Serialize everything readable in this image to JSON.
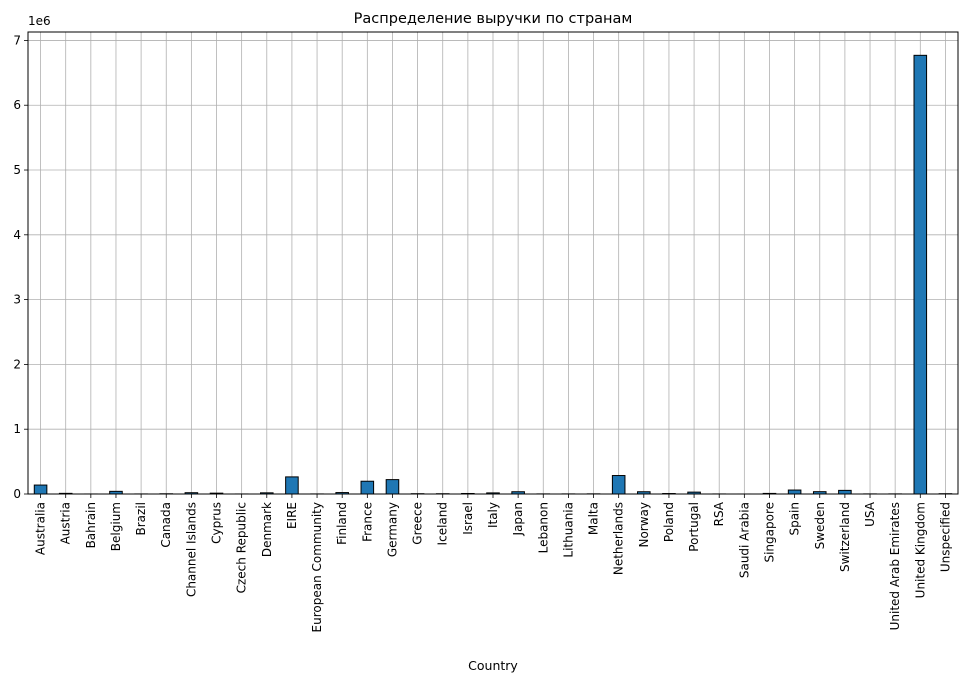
{
  "chart_data": {
    "type": "bar",
    "title": "Распределение выручки по странам",
    "xlabel": "Country",
    "ylabel": "",
    "y_offset_label": "1e6",
    "y_multiplier": 1000000,
    "ylim": [
      0,
      7130000
    ],
    "yticks": [
      0,
      1,
      2,
      3,
      4,
      5,
      6,
      7
    ],
    "grid": true,
    "bar_color": "#1f77b4",
    "edge_color": "#000000",
    "categories": [
      "Australia",
      "Austria",
      "Bahrain",
      "Belgium",
      "Brazil",
      "Canada",
      "Channel Islands",
      "Cyprus",
      "Czech Republic",
      "Denmark",
      "EIRE",
      "European Community",
      "Finland",
      "France",
      "Germany",
      "Greece",
      "Iceland",
      "Israel",
      "Italy",
      "Japan",
      "Lebanon",
      "Lithuania",
      "Malta",
      "Netherlands",
      "Norway",
      "Poland",
      "Portugal",
      "RSA",
      "Saudi Arabia",
      "Singapore",
      "Spain",
      "Sweden",
      "Switzerland",
      "USA",
      "United Arab Emirates",
      "United Kingdom",
      "Unspecified"
    ],
    "values": [
      138000,
      10000,
      500,
      41000,
      1100,
      3600,
      20000,
      13000,
      700,
      18000,
      264000,
      1300,
      22000,
      197000,
      222000,
      4700,
      4300,
      7900,
      17000,
      35000,
      1700,
      1700,
      2500,
      285000,
      35000,
      7200,
      29000,
      1000,
      130,
      9100,
      61000,
      36000,
      56000,
      1700,
      1900,
      6770000,
      4700
    ]
  }
}
